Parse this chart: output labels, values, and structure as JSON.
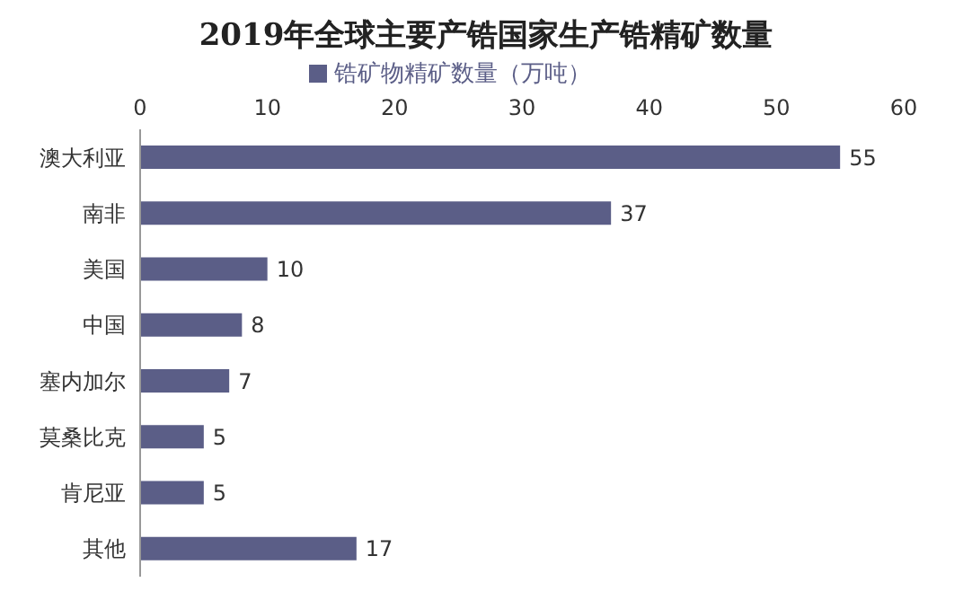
{
  "chart_data": {
    "type": "bar",
    "orientation": "horizontal",
    "title": "2019年全球主要产锆国家生产锆精矿数量",
    "categories": [
      "澳大利亚",
      "南非",
      "美国",
      "中国",
      "塞内加尔",
      "莫桑比克",
      "肯尼亚",
      "其他"
    ],
    "series": [
      {
        "name": "锆矿物精矿数量（万吨）",
        "color": "#5b5e87",
        "values": [
          55,
          37,
          10,
          8,
          7,
          5,
          5,
          17
        ]
      }
    ],
    "xlim": [
      0,
      60
    ],
    "xticks": [
      0,
      10,
      20,
      30,
      40,
      50,
      60
    ],
    "data_labels": true,
    "legend": "top",
    "grid": false
  }
}
